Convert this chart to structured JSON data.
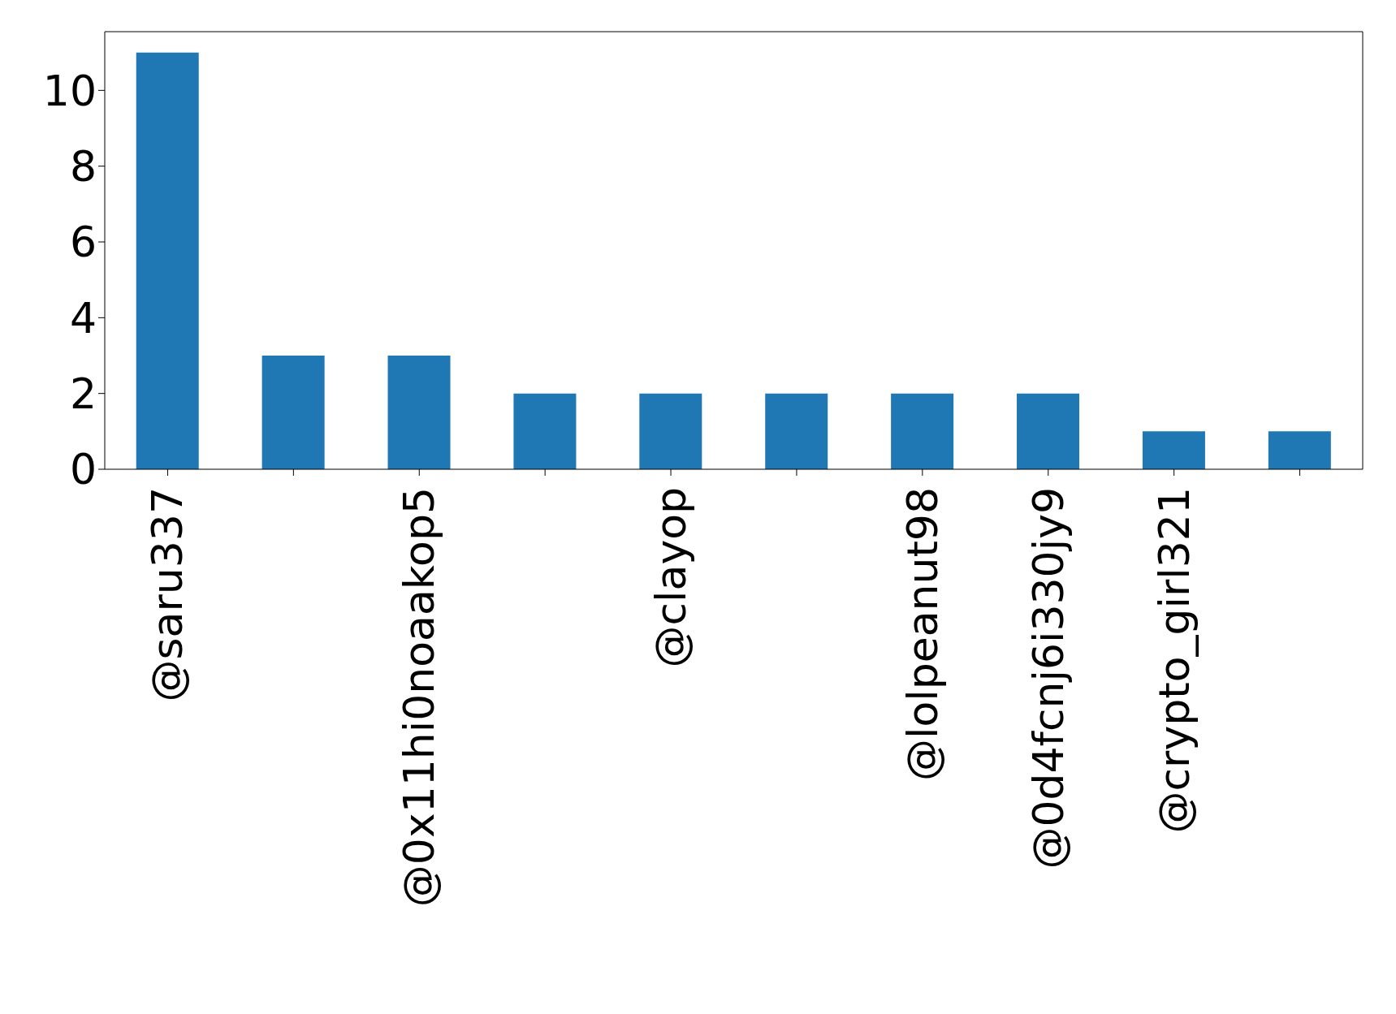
{
  "chart_data": {
    "type": "bar",
    "categories": [
      "@saru337",
      null,
      "@0x11hi0noaakop5",
      null,
      "@clayop",
      null,
      "@lolpeanut98",
      "@0d4fcnj6i330jy9",
      "@crypto_girl321",
      null
    ],
    "values": [
      11,
      3,
      3,
      2,
      2,
      2,
      2,
      2,
      1,
      1
    ],
    "color": "#1f77b4",
    "ylim": [
      0,
      11.55
    ],
    "yticks": [
      0,
      2,
      4,
      6,
      8,
      10
    ],
    "grid": false
  }
}
